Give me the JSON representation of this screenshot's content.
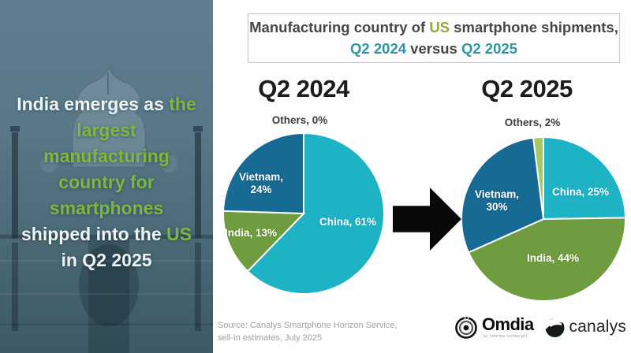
{
  "left_panel": {
    "image_alt": "taj-mahal-photo-teal-overlay",
    "segments": [
      {
        "text": "India emerges as ",
        "color": "#eef3f4"
      },
      {
        "text": "the largest manufacturing country for smartphones",
        "color": "#7cb83e"
      },
      {
        "text": " shipped into the ",
        "color": "#eef3f4"
      },
      {
        "text": "US",
        "color": "#7cb83e"
      },
      {
        "text": " in Q2 2025",
        "color": "#eef3f4"
      }
    ]
  },
  "title_box": {
    "line1": [
      {
        "text": "Manufacturing country of ",
        "color": "#43474a"
      },
      {
        "text": "US",
        "color": "#8fab3e"
      },
      {
        "text": " smartphone shipments,",
        "color": "#43474a"
      }
    ],
    "line2": [
      {
        "text": "Q2 2024",
        "color": "#2d95a4"
      },
      {
        "text": " versus ",
        "color": "#43474a"
      },
      {
        "text": "Q2 2025",
        "color": "#2d95a4"
      }
    ]
  },
  "chart_data": [
    {
      "type": "pie",
      "title": "Q2 2024",
      "start_angle_deg": 0,
      "direction": "clockwise",
      "categories": [
        "China",
        "India",
        "Vietnam",
        "Others"
      ],
      "values": [
        61,
        13,
        24,
        0
      ],
      "slices": [
        {
          "label": "China",
          "value": 61,
          "display": "China, 61%",
          "color": "#1db3c5"
        },
        {
          "label": "India",
          "value": 13,
          "display": "India, 13%",
          "color": "#6f9c3e"
        },
        {
          "label": "Vietnam",
          "value": 24,
          "display": "Vietnam, 24%",
          "color": "#176a94"
        },
        {
          "label": "Others",
          "value": 0,
          "display": "Others, 0%",
          "color": "#a5c95e"
        }
      ]
    },
    {
      "type": "pie",
      "title": "Q2 2025",
      "start_angle_deg": 0,
      "direction": "clockwise",
      "categories": [
        "China",
        "India",
        "Vietnam",
        "Others"
      ],
      "values": [
        25,
        44,
        30,
        2
      ],
      "slices": [
        {
          "label": "China",
          "value": 25,
          "display": "China, 25%",
          "color": "#1db3c5"
        },
        {
          "label": "India",
          "value": 44,
          "display": "India, 44%",
          "color": "#6f9c3e"
        },
        {
          "label": "Vietnam",
          "value": 30,
          "display": "Vietnam, 30%",
          "color": "#176a94"
        },
        {
          "label": "Others",
          "value": 2,
          "display": "Others, 2%",
          "color": "#a5c95e"
        }
      ]
    }
  ],
  "arrow": {
    "direction": "right",
    "color": "#080808"
  },
  "source": {
    "line1": "Source: Canalys Smartphone Horizon Service,",
    "line2": "sell-in estimates, July 2025"
  },
  "logos": {
    "omdia": {
      "name": "Omdia",
      "sub": "by informa techtarget"
    },
    "canalys": {
      "name": "canalys"
    }
  }
}
